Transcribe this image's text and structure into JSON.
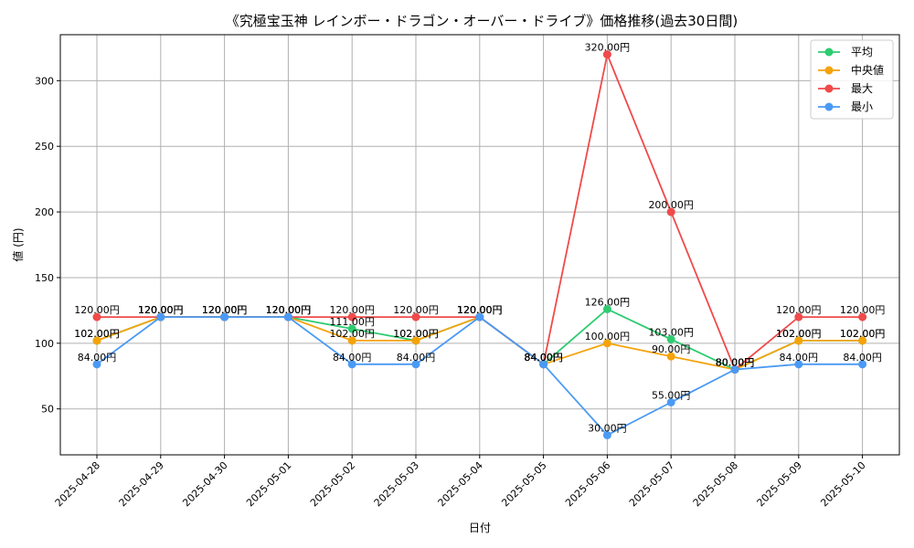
{
  "chart_data": {
    "type": "line",
    "title": "《究極宝玉神 レインボー・ドラゴン・オーバー・ドライブ》価格推移(過去30日間)",
    "xlabel": "日付",
    "ylabel": "値 (円)",
    "ylim": [
      15,
      335
    ],
    "yticks": [
      50,
      100,
      150,
      200,
      250,
      300
    ],
    "grid": true,
    "legend_position": "top-right",
    "label_suffix": "円",
    "categories": [
      "2025-04-28",
      "2025-04-29",
      "2025-04-30",
      "2025-05-01",
      "2025-05-02",
      "2025-05-03",
      "2025-05-04",
      "2025-05-05",
      "2025-05-06",
      "2025-05-07",
      "2025-05-08",
      "2025-05-09",
      "2025-05-10"
    ],
    "series": [
      {
        "name": "平均",
        "color": "#2ecc71",
        "values": [
          102,
          120,
          120,
          120,
          111,
          102,
          120,
          84,
          126,
          103,
          80,
          102,
          102
        ]
      },
      {
        "name": "中央値",
        "color": "#f5a30a",
        "values": [
          102,
          120,
          120,
          120,
          102,
          102,
          120,
          84,
          100,
          90,
          80,
          102,
          102
        ]
      },
      {
        "name": "最大",
        "color": "#f04a4a",
        "values": [
          120,
          120,
          120,
          120,
          120,
          120,
          120,
          84,
          320,
          200,
          80,
          120,
          120
        ]
      },
      {
        "name": "最小",
        "color": "#4a9af5",
        "values": [
          84,
          120,
          120,
          120,
          84,
          84,
          120,
          84,
          30,
          55,
          80,
          84,
          84
        ]
      }
    ]
  }
}
